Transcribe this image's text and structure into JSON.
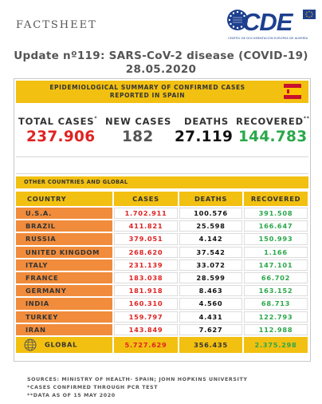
{
  "header": {
    "factsheet_label": "FACTSHEET",
    "logo_text": "CDE",
    "logo_subtitle": "CENTRO DE DOCUMENTACIÓN EUROPEA DE ALMERÍA"
  },
  "title": {
    "line1": "Update nº119: SARS-CoV-2 disease (COVID-19)",
    "line2": "28.05.2020"
  },
  "summary": {
    "banner_line1": "EPIDEMIOLOGICAL SUMMARY OF CONFIRMED CASES",
    "banner_line2": "REPORTED IN SPAIN",
    "total_cases_label": "TOTAL CASES",
    "total_cases_mark": "*",
    "total_cases": "237.906",
    "new_cases_label": "NEW CASES",
    "new_cases": "182",
    "deaths_label": "DEATHS",
    "deaths": "27.119",
    "recovered_label": "RECOVERED",
    "recovered_mark": "**",
    "recovered": "144.783"
  },
  "other": {
    "banner": "OTHER COUNTRIES AND GLOBAL"
  },
  "table": {
    "headers": [
      "COUNTRY",
      "CASES",
      "DEATHS",
      "RECOVERED"
    ],
    "rows": [
      {
        "country": "U.S.A.",
        "cases": "1.702.911",
        "deaths": "100.576",
        "recovered": "391.508"
      },
      {
        "country": "BRAZIL",
        "cases": "411.821",
        "deaths": "25.598",
        "recovered": "166.647"
      },
      {
        "country": "RUSSIA",
        "cases": "379.051",
        "deaths": "4.142",
        "recovered": "150.993"
      },
      {
        "country": "UNITED KINGDOM",
        "cases": "268.620",
        "deaths": "37.542",
        "recovered": "1.166"
      },
      {
        "country": "ITALY",
        "cases": "231.139",
        "deaths": "33.072",
        "recovered": "147.101"
      },
      {
        "country": "FRANCE",
        "cases": "183.038",
        "deaths": "28.599",
        "recovered": "66.702"
      },
      {
        "country": "GERMANY",
        "cases": "181.918",
        "deaths": "8.463",
        "recovered": "163.152"
      },
      {
        "country": "INDIA",
        "cases": "160.310",
        "deaths": "4.560",
        "recovered": "68.713"
      },
      {
        "country": "TURKEY",
        "cases": "159.797",
        "deaths": "4.431",
        "recovered": "122.793"
      },
      {
        "country": "IRAN",
        "cases": "143.849",
        "deaths": "7.627",
        "recovered": "112.988"
      }
    ],
    "global": {
      "label": "GLOBAL",
      "cases": "5.727.629",
      "deaths": "356.435",
      "recovered": "2.375.298"
    }
  },
  "footer": {
    "sources": "SOURCES: MINISTRY OF HEALTH- SPAIN; JOHN HOPKINS UNIVERSITY",
    "note1": "*CASES CONFIRMED THROUGH PCR TEST",
    "note2": "**DATA AS OF 15 MAY 2020"
  },
  "colors": {
    "banner_yellow": "#f2c011",
    "country_orange": "#f08c3c",
    "cases_red": "#e02222",
    "recovered_green": "#2aa84a",
    "logo_blue": "#1d3f8f"
  },
  "icons": [
    "eu-stars-logo-icon",
    "spain-flag-icon",
    "globe-icon"
  ]
}
